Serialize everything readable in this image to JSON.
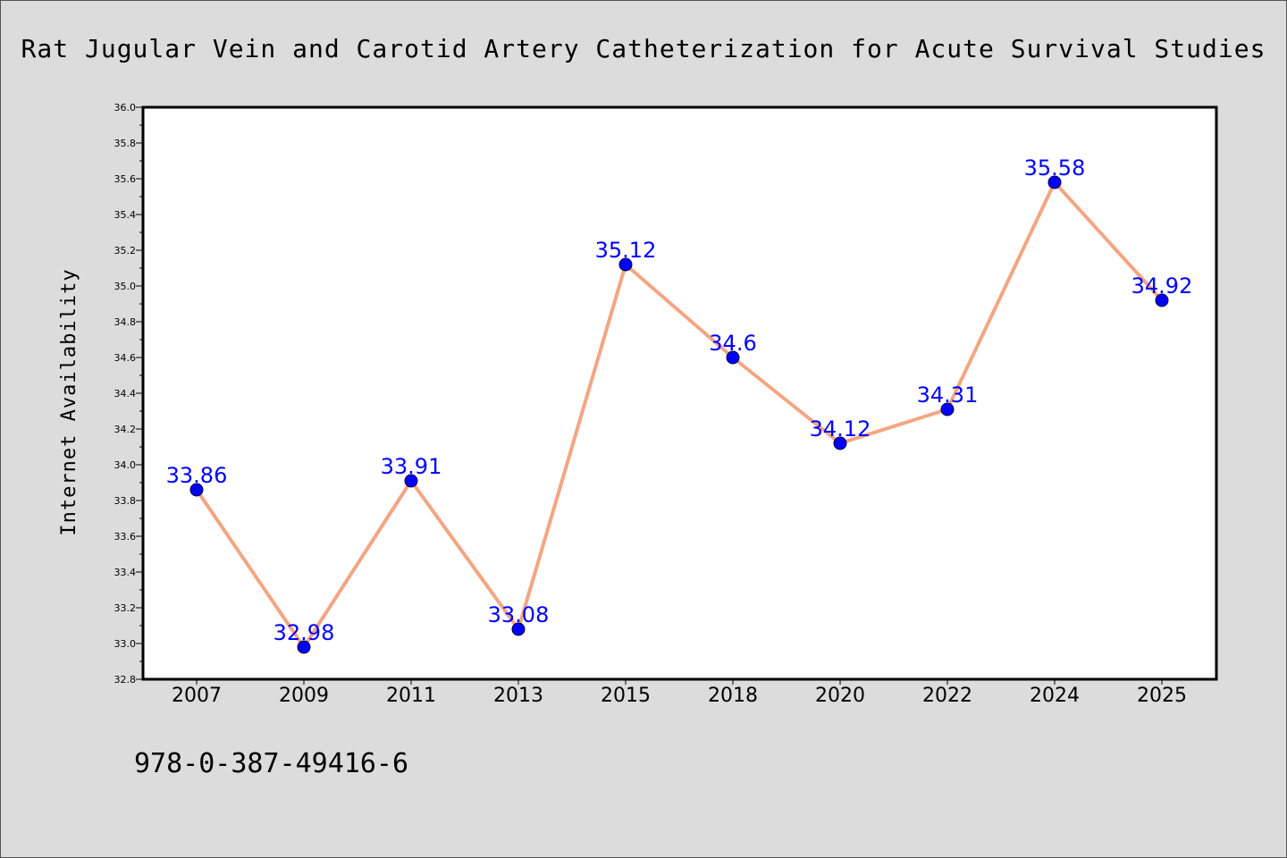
{
  "title": "Rat Jugular Vein and Carotid Artery Catheterization for Acute Survival Studies",
  "footer_code": "978-0-387-49416-6",
  "colors": {
    "background": "#dcdcdc",
    "plot_background": "#ffffff",
    "line": "#f4a582",
    "marker": "#0000ff",
    "data_label": "#0000ff"
  },
  "chart_data": {
    "type": "line",
    "title": "Rat Jugular Vein and Carotid Artery Catheterization for Acute Survival Studies",
    "xlabel": "",
    "ylabel": "Internet Availability",
    "categories": [
      "2007",
      "2009",
      "2011",
      "2013",
      "2015",
      "2018",
      "2020",
      "2022",
      "2024",
      "2025"
    ],
    "values": [
      33.86,
      32.98,
      33.91,
      33.08,
      35.12,
      34.6,
      34.12,
      34.31,
      35.58,
      34.92
    ],
    "data_labels": [
      "33.86",
      "32.98",
      "33.91",
      "33.08",
      "35.12",
      "34.6",
      "34.12",
      "34.31",
      "35.58",
      "34.92"
    ],
    "ylim": [
      32.8,
      36.0
    ],
    "yticks": [
      "32.8",
      "33.0",
      "33.2",
      "33.4",
      "33.6",
      "33.8",
      "34.0",
      "34.2",
      "34.4",
      "34.6",
      "34.8",
      "35.0",
      "35.2",
      "35.4",
      "35.6",
      "35.8",
      "36.0"
    ],
    "grid": false,
    "legend": "none"
  }
}
